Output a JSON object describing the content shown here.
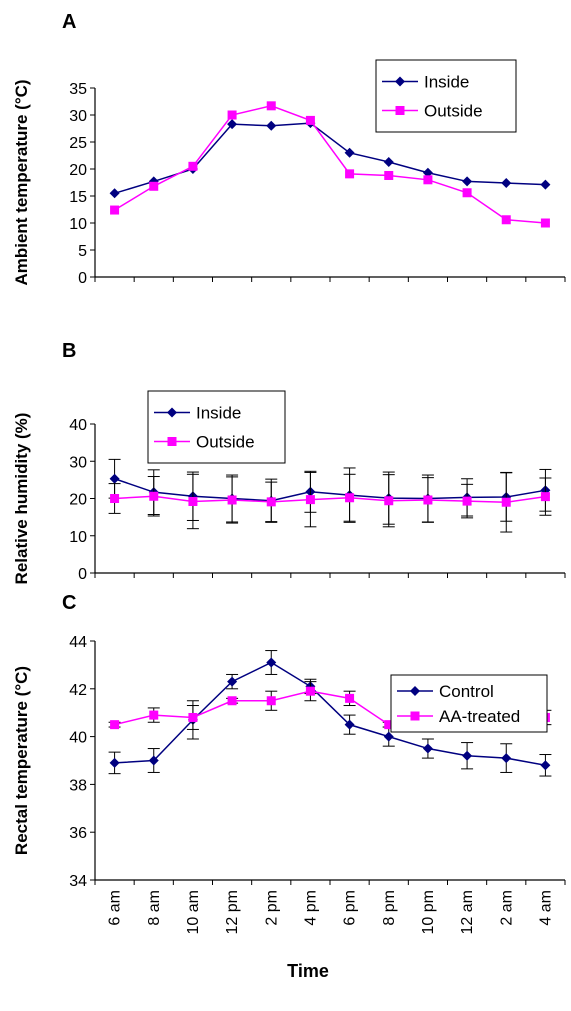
{
  "figure": {
    "xlabel": "Time"
  },
  "colors": {
    "series1": "#000080",
    "series2": "#FF00FF",
    "axis": "#000000"
  },
  "chart_data": [
    {
      "panel": "A",
      "type": "line",
      "ylabel": "Ambient temperature (°C)",
      "ylim": [
        0,
        35
      ],
      "yticks": [
        0,
        5,
        10,
        15,
        20,
        25,
        30,
        35
      ],
      "categories": [
        "6 am",
        "8 am",
        "10 am",
        "12 pm",
        "2 pm",
        "4 pm",
        "6 pm",
        "8 pm",
        "10 pm",
        "12 am",
        "2 am",
        "4 am"
      ],
      "legend_position": "top-right",
      "series": [
        {
          "name": "Inside",
          "values": [
            15.5,
            17.7,
            20,
            28.3,
            28,
            28.5,
            23,
            21.3,
            19.3,
            17.7,
            17.4,
            17.1
          ]
        },
        {
          "name": "Outside",
          "values": [
            12.4,
            16.8,
            20.5,
            30,
            31.7,
            29,
            19.1,
            18.8,
            18,
            15.6,
            10.6,
            10
          ]
        }
      ]
    },
    {
      "panel": "B",
      "type": "line",
      "ylabel": "Relative humidity (%)",
      "ylim": [
        0,
        40
      ],
      "yticks": [
        0,
        10,
        20,
        30,
        40
      ],
      "categories": [
        "6 am",
        "8 am",
        "10 am",
        "12 pm",
        "2 pm",
        "4 pm",
        "6 pm",
        "8 pm",
        "10 pm",
        "12 am",
        "2 am",
        "4 am"
      ],
      "legend_position": "top-left",
      "series": [
        {
          "name": "Inside",
          "values": [
            25.3,
            21.7,
            20.6,
            20,
            19.4,
            21.8,
            20.9,
            20.1,
            20,
            20.3,
            20.4,
            22.2
          ],
          "errors": [
            5.2,
            6,
            6.5,
            6.3,
            5.8,
            5.5,
            7.3,
            7,
            6.3,
            5,
            6.5,
            5.6
          ]
        },
        {
          "name": "Outside",
          "values": [
            20,
            20.6,
            19.2,
            19.6,
            19.1,
            19.7,
            20.2,
            19.4,
            19.6,
            19.3,
            19,
            20.5
          ],
          "errors": [
            4,
            5.3,
            7.3,
            6.2,
            5.3,
            7.3,
            6.3,
            7,
            6,
            4.5,
            8,
            5
          ]
        }
      ]
    },
    {
      "panel": "C",
      "type": "line",
      "ylabel": "Rectal temperature (°C)",
      "ylim": [
        34,
        44
      ],
      "yticks": [
        34,
        36,
        38,
        40,
        42,
        44
      ],
      "categories": [
        "6 am",
        "8 am",
        "10 am",
        "12 pm",
        "2 pm",
        "4 pm",
        "6 pm",
        "8 pm",
        "10 pm",
        "12 am",
        "2 am",
        "4 am"
      ],
      "legend_position": "top-right",
      "series": [
        {
          "name": "Control",
          "values": [
            38.9,
            39,
            40.7,
            42.3,
            43.1,
            42.1,
            40.5,
            40,
            39.5,
            39.2,
            39.1,
            38.8
          ],
          "errors": [
            0.45,
            0.5,
            0.8,
            0.3,
            0.5,
            0.3,
            0.4,
            0.4,
            0.4,
            0.55,
            0.6,
            0.45
          ]
        },
        {
          "name": "AA-treated",
          "values": [
            40.5,
            40.9,
            40.8,
            41.5,
            41.5,
            41.9,
            41.6,
            40.5,
            40.6,
            40.8,
            40.9,
            40.8
          ],
          "errors": [
            0.1,
            0.3,
            0.5,
            0.1,
            0.4,
            0.4,
            0.3,
            0.1,
            0.25,
            0.15,
            0.5,
            0.3
          ]
        }
      ]
    }
  ]
}
